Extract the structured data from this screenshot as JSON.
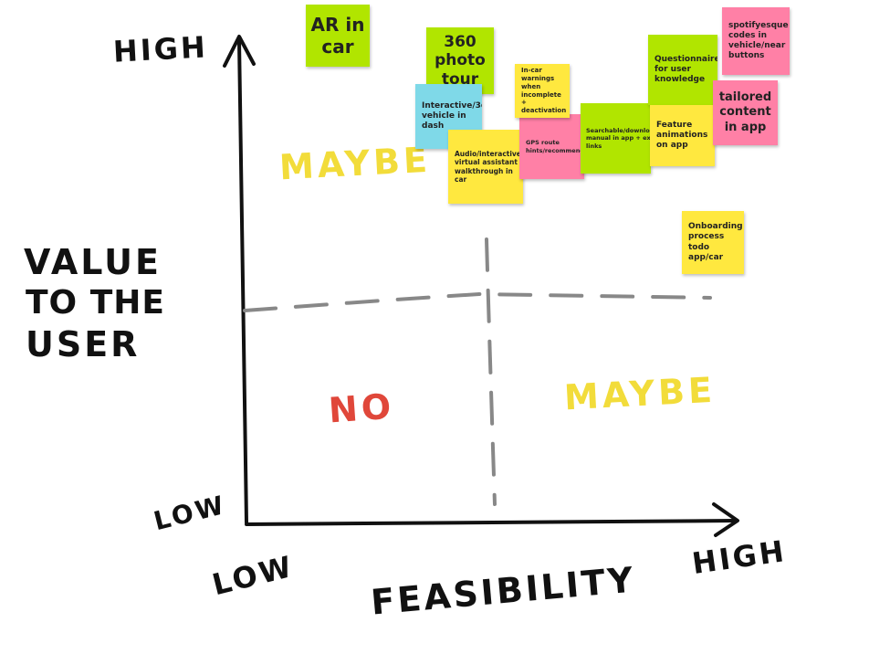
{
  "axes": {
    "y_label": [
      "VALUE",
      "TO THE",
      "USER"
    ],
    "x_label": "FEASIBILITY",
    "y_high": "HIGH",
    "y_low": "LOW",
    "x_low": "LOW",
    "x_high": "HIGH"
  },
  "zones": {
    "top_left": "MAYBE",
    "bottom_left": "NO",
    "bottom_right": "MAYBE"
  },
  "colors": {
    "green": "#b1e500",
    "yellow": "#ffe83f",
    "pink": "#ff80a6",
    "blue": "#7fd9e8",
    "maybe": "#f2dc3a",
    "no": "#e0473a"
  },
  "notes": [
    {
      "text": "AR in car",
      "color": "green"
    },
    {
      "text": "360 photo tour",
      "color": "green"
    },
    {
      "text": "Interactive/3d vehicle in dash",
      "color": "blue"
    },
    {
      "text": "Audio/interactive virtual assistant walkthrough in car",
      "color": "yellow"
    },
    {
      "text": "In-car warnings when incomplete + deactivation",
      "color": "yellow"
    },
    {
      "text": "GPS route hints/recommends",
      "color": "pink"
    },
    {
      "text": "Searchable/downloadable manual in app + external links",
      "color": "green"
    },
    {
      "text": "Questionnaire for user knowledge",
      "color": "green"
    },
    {
      "text": "Feature animations on app",
      "color": "yellow"
    },
    {
      "text": "spotifyesque codes in vehicle/near buttons",
      "color": "pink"
    },
    {
      "text": "tailored content in app",
      "color": "pink"
    },
    {
      "text": "Onboarding process todo app/car",
      "color": "yellow"
    }
  ]
}
